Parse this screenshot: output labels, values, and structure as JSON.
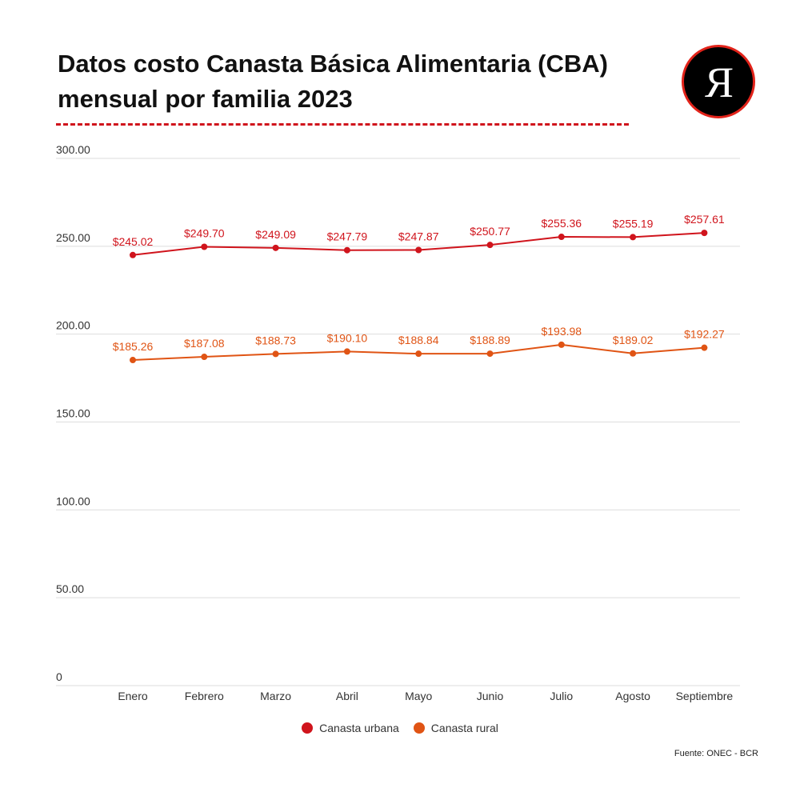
{
  "header": {
    "title": "Datos costo Canasta Básica Alimentaria (CBA) mensual por familia 2023",
    "logo_letter": "Я"
  },
  "colors": {
    "urban": "#d0141c",
    "rural": "#e05414",
    "grid": "#dddddd",
    "axis_text": "#333333",
    "logo_bg": "#000000",
    "logo_ring": "#e2231a"
  },
  "chart_data": {
    "type": "line",
    "title": "Datos costo Canasta Básica Alimentaria (CBA) mensual por familia 2023",
    "xlabel": "",
    "ylabel": "",
    "categories": [
      "Enero",
      "Febrero",
      "Marzo",
      "Abril",
      "Mayo",
      "Junio",
      "Julio",
      "Agosto",
      "Septiembre"
    ],
    "ylim": [
      0,
      300
    ],
    "yticks": [
      0,
      50,
      100,
      150,
      200,
      250,
      300
    ],
    "ytick_labels": [
      "0",
      "50.00",
      "100.00",
      "150.00",
      "200.00",
      "250.00",
      "300.00"
    ],
    "grid": true,
    "legend_position": "bottom-center",
    "series": [
      {
        "name": "Canasta urbana",
        "color": "#d0141c",
        "values": [
          245.02,
          249.7,
          249.09,
          247.79,
          247.87,
          250.77,
          255.36,
          255.19,
          257.61
        ],
        "labels": [
          "$245.02",
          "$249.70",
          "$249.09",
          "$247.79",
          "$247.87",
          "$250.77",
          "$255.36",
          "$255.19",
          "$257.61"
        ]
      },
      {
        "name": "Canasta rural",
        "color": "#e05414",
        "values": [
          185.26,
          187.08,
          188.73,
          190.1,
          188.84,
          188.89,
          193.98,
          189.02,
          192.27
        ],
        "labels": [
          "$185.26",
          "$187.08",
          "$188.73",
          "$190.10",
          "$188.84",
          "$188.89",
          "$193.98",
          "$189.02",
          "$192.27"
        ]
      }
    ]
  },
  "legend": {
    "items": [
      {
        "label": "Canasta urbana",
        "color": "#d0141c"
      },
      {
        "label": "Canasta rural",
        "color": "#e05414"
      }
    ]
  },
  "footer": {
    "source": "Fuente: ONEC - BCR"
  }
}
